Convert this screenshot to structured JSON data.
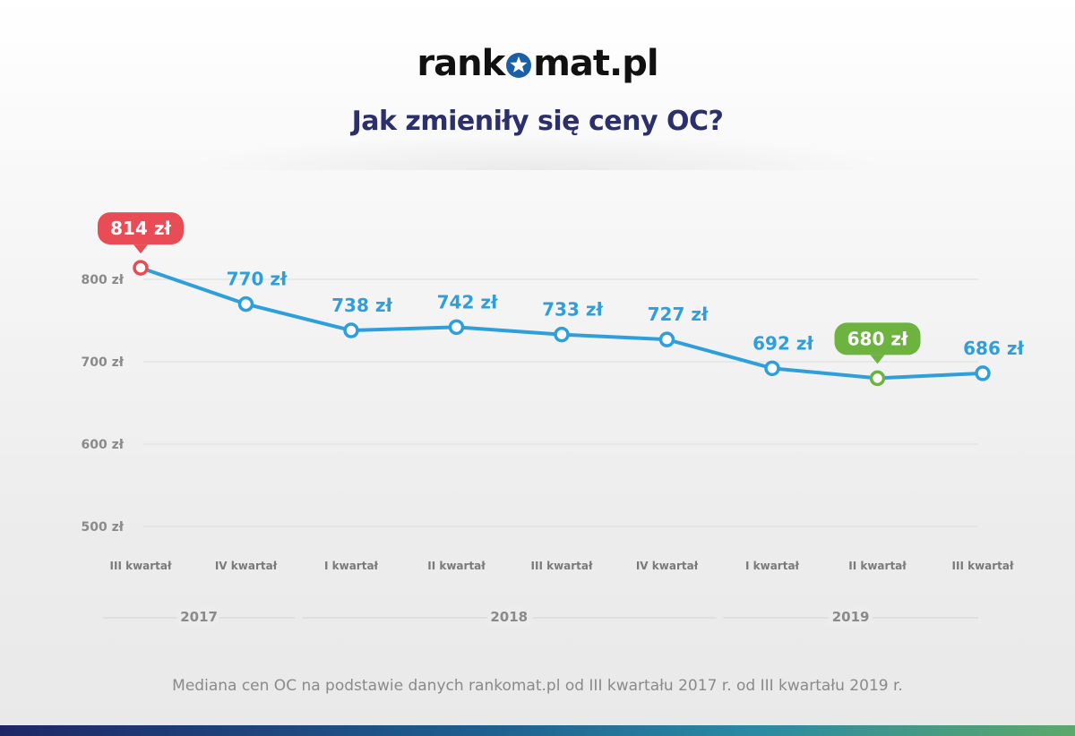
{
  "brand": {
    "logo_before": "rank",
    "logo_after": "mat.pl",
    "logo_icon": "star-in-circle-icon"
  },
  "title": "Jak zmieniły się ceny OC?",
  "caption": "Mediana cen OC na podstawie danych rankomat.pl od III kwartału 2017 r. od III kwartału 2019 r.",
  "colors": {
    "line": "#2f9fdc",
    "point_fill": "#ffffff",
    "value_label": "#2f9fdc",
    "max_highlight": "#e84c55",
    "min_highlight": "#6cb33f",
    "title": "#2b2f6b",
    "axis_text": "#8a8a8a",
    "gridline": "#dcdcdc"
  },
  "chart_data": {
    "type": "line",
    "title": "Jak zmieniły się ceny OC?",
    "xlabel": "",
    "ylabel": "",
    "categories": [
      "III kwartał",
      "IV kwartał",
      "I kwartał",
      "II kwartał",
      "III kwartał",
      "IV kwartał",
      "I kwartał",
      "II kwartał",
      "III kwartał"
    ],
    "years": [
      {
        "label": "2017",
        "from": 0,
        "to": 1
      },
      {
        "label": "2018",
        "from": 2,
        "to": 5
      },
      {
        "label": "2019",
        "from": 6,
        "to": 8
      }
    ],
    "values": [
      814,
      770,
      738,
      742,
      733,
      727,
      692,
      680,
      686
    ],
    "value_labels": [
      "814 zł",
      "770 zł",
      "738 zł",
      "742 zł",
      "733 zł",
      "727 zł",
      "692 zł",
      "680 zł",
      "686 zł"
    ],
    "highlights": [
      {
        "index": 0,
        "kind": "max"
      },
      {
        "index": 7,
        "kind": "min"
      }
    ],
    "yticks": [
      500,
      600,
      700,
      800
    ],
    "ytick_labels": [
      "500 zł",
      "600 zł",
      "700 zł",
      "800 zł"
    ],
    "ylim": [
      500,
      800
    ],
    "grid": true,
    "legend": "none"
  }
}
